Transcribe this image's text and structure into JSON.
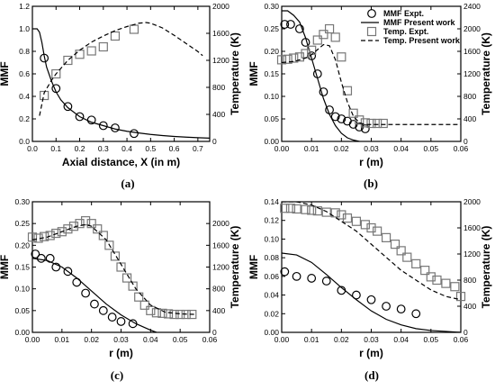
{
  "chart_data": [
    {
      "id": "a",
      "panel_label": "(a)",
      "type": "line",
      "xlabel": "Axial distance, X (in m)",
      "ylabel_left": "MMF",
      "ylabel_right": "Temperature (K)",
      "xlim": [
        0.0,
        0.75
      ],
      "ylim_left": [
        0.0,
        1.2
      ],
      "ylim_right": [
        0,
        2000
      ],
      "xticks": [
        "0.0",
        "0.1",
        "0.2",
        "0.3",
        "0.4",
        "0.5",
        "0.6",
        "0.7"
      ],
      "yticks_left": [
        "0.0",
        "0.2",
        "0.4",
        "0.6",
        "0.8",
        "1.0",
        "1.2"
      ],
      "yticks_right": [
        "0",
        "400",
        "800",
        "1200",
        "1600",
        "2000"
      ],
      "series": [
        {
          "role": "mmf-expt",
          "marker": "circle",
          "axis": "left",
          "x": [
            0.05,
            0.1,
            0.15,
            0.2,
            0.25,
            0.3,
            0.35,
            0.43
          ],
          "y": [
            0.74,
            0.47,
            0.31,
            0.22,
            0.19,
            0.14,
            0.12,
            0.07
          ]
        },
        {
          "role": "mmf-model",
          "style": "solid",
          "axis": "left",
          "x": [
            0.0,
            0.02,
            0.03,
            0.04,
            0.05,
            0.06,
            0.08,
            0.1,
            0.12,
            0.15,
            0.2,
            0.25,
            0.3,
            0.35,
            0.4,
            0.45,
            0.5,
            0.55,
            0.6,
            0.65,
            0.7,
            0.75
          ],
          "y": [
            1.0,
            1.0,
            0.97,
            0.88,
            0.76,
            0.66,
            0.54,
            0.44,
            0.37,
            0.3,
            0.22,
            0.17,
            0.14,
            0.11,
            0.09,
            0.075,
            0.062,
            0.052,
            0.044,
            0.038,
            0.033,
            0.029
          ]
        },
        {
          "role": "temp-expt",
          "marker": "square",
          "axis": "right",
          "x": [
            0.05,
            0.1,
            0.15,
            0.2,
            0.25,
            0.3,
            0.35,
            0.43
          ],
          "y": [
            680,
            1000,
            1200,
            1290,
            1340,
            1400,
            1560,
            1660
          ]
        },
        {
          "role": "temp-model",
          "style": "dashed",
          "axis": "right",
          "x": [
            0.03,
            0.05,
            0.08,
            0.1,
            0.15,
            0.2,
            0.25,
            0.3,
            0.35,
            0.4,
            0.45,
            0.48,
            0.5,
            0.55,
            0.6,
            0.65,
            0.7,
            0.72
          ],
          "y": [
            380,
            720,
            900,
            1000,
            1200,
            1350,
            1470,
            1560,
            1640,
            1700,
            1750,
            1760,
            1750,
            1680,
            1570,
            1450,
            1330,
            1270
          ]
        }
      ]
    },
    {
      "id": "b",
      "panel_label": "(b)",
      "type": "line",
      "xlabel": "r (m)",
      "ylabel_left": "MMF",
      "ylabel_right": "Temperature (K)",
      "xlim": [
        0.0,
        0.06
      ],
      "ylim_left": [
        0.0,
        0.3
      ],
      "ylim_right": [
        0,
        2400
      ],
      "xticks": [
        "0.00",
        "0.01",
        "0.02",
        "0.03",
        "0.04",
        "0.05",
        "0.06"
      ],
      "yticks_left": [
        "0.00",
        "0.05",
        "0.10",
        "0.15",
        "0.20",
        "0.25",
        "0.30"
      ],
      "yticks_right": [
        "0",
        "400",
        "800",
        "1200",
        "1600",
        "2000",
        "2400"
      ],
      "legend": {
        "placement": "top-right",
        "entries": [
          {
            "label": "MMF Expt.",
            "marker": "circle"
          },
          {
            "label": "MMF Present work",
            "style": "solid"
          },
          {
            "label": "Temp. Expt.",
            "marker": "square"
          },
          {
            "label": "Temp. Present work",
            "style": "dashed"
          }
        ]
      },
      "series": [
        {
          "role": "mmf-expt",
          "marker": "circle",
          "axis": "left",
          "x": [
            0.001,
            0.003,
            0.006,
            0.008,
            0.01,
            0.012,
            0.014,
            0.016,
            0.018,
            0.02,
            0.022,
            0.024,
            0.026,
            0.028
          ],
          "y": [
            0.26,
            0.26,
            0.25,
            0.22,
            0.19,
            0.15,
            0.11,
            0.07,
            0.055,
            0.05,
            0.045,
            0.038,
            0.032,
            0.028
          ]
        },
        {
          "role": "mmf-model",
          "style": "solid",
          "axis": "left",
          "x": [
            0.0,
            0.002,
            0.004,
            0.006,
            0.008,
            0.01,
            0.012,
            0.014,
            0.016,
            0.018,
            0.02,
            0.022,
            0.024,
            0.026
          ],
          "y": [
            0.29,
            0.29,
            0.28,
            0.265,
            0.23,
            0.185,
            0.14,
            0.095,
            0.06,
            0.035,
            0.018,
            0.008,
            0.003,
            0.0
          ]
        },
        {
          "role": "temp-expt",
          "marker": "square",
          "axis": "right",
          "x": [
            0.0,
            0.002,
            0.004,
            0.006,
            0.008,
            0.01,
            0.012,
            0.014,
            0.016,
            0.018,
            0.02,
            0.022,
            0.024,
            0.026,
            0.028,
            0.03,
            0.032,
            0.034
          ],
          "y": [
            1450,
            1460,
            1480,
            1500,
            1560,
            1620,
            1800,
            1900,
            2000,
            1850,
            1500,
            900,
            500,
            380,
            330,
            320,
            320,
            320
          ]
        },
        {
          "role": "temp-model",
          "style": "dashed",
          "axis": "right",
          "x": [
            0.0,
            0.004,
            0.008,
            0.01,
            0.012,
            0.014,
            0.016,
            0.018,
            0.02,
            0.022,
            0.024,
            0.026,
            0.028,
            0.03,
            0.035,
            0.04,
            0.06
          ],
          "y": [
            1400,
            1420,
            1480,
            1540,
            1630,
            1720,
            1700,
            1450,
            1050,
            700,
            450,
            330,
            300,
            300,
            300,
            300,
            300
          ]
        }
      ]
    },
    {
      "id": "c",
      "panel_label": "(c)",
      "type": "line",
      "xlabel": "r (m)",
      "ylabel_left": "MMF",
      "ylabel_right": "Temperature (K)",
      "xlim": [
        0.0,
        0.06
      ],
      "ylim_left": [
        0.0,
        0.3
      ],
      "ylim_right": [
        0,
        2400
      ],
      "xticks": [
        "0.00",
        "0.01",
        "0.02",
        "0.03",
        "0.04",
        "0.05",
        "0.06"
      ],
      "yticks_left": [
        "0.00",
        "0.05",
        "0.10",
        "0.15",
        "0.20",
        "0.25",
        "0.30"
      ],
      "yticks_right": [
        "0",
        "400",
        "800",
        "1200",
        "1600",
        "2000"
      ],
      "series": [
        {
          "role": "mmf-expt",
          "marker": "circle",
          "axis": "left",
          "x": [
            0.001,
            0.003,
            0.006,
            0.008,
            0.012,
            0.015,
            0.018,
            0.021,
            0.024,
            0.027,
            0.03,
            0.034
          ],
          "y": [
            0.18,
            0.17,
            0.17,
            0.15,
            0.14,
            0.115,
            0.09,
            0.065,
            0.05,
            0.035,
            0.025,
            0.02
          ]
        },
        {
          "role": "mmf-model",
          "style": "solid",
          "axis": "left",
          "x": [
            0.0,
            0.005,
            0.01,
            0.015,
            0.02,
            0.025,
            0.03,
            0.035,
            0.04,
            0.042
          ],
          "y": [
            0.17,
            0.165,
            0.15,
            0.125,
            0.095,
            0.065,
            0.04,
            0.02,
            0.005,
            0.0
          ]
        },
        {
          "role": "temp-expt",
          "marker": "square",
          "axis": "right",
          "x": [
            0.0,
            0.002,
            0.004,
            0.006,
            0.008,
            0.01,
            0.012,
            0.014,
            0.016,
            0.018,
            0.02,
            0.022,
            0.024,
            0.026,
            0.028,
            0.03,
            0.032,
            0.034,
            0.036,
            0.038,
            0.04,
            0.042,
            0.044,
            0.046,
            0.048,
            0.05,
            0.052,
            0.054
          ],
          "y": [
            1750,
            1730,
            1760,
            1780,
            1820,
            1850,
            1900,
            1950,
            2000,
            2050,
            2000,
            1900,
            1780,
            1600,
            1400,
            1200,
            1000,
            850,
            650,
            500,
            400,
            360,
            350,
            340,
            330,
            330,
            330,
            330
          ]
        },
        {
          "role": "temp-model",
          "style": "dashed",
          "axis": "right",
          "x": [
            0.0,
            0.005,
            0.01,
            0.015,
            0.018,
            0.02,
            0.025,
            0.03,
            0.035,
            0.04,
            0.045,
            0.05,
            0.055
          ],
          "y": [
            1700,
            1750,
            1850,
            1950,
            1980,
            1950,
            1700,
            1250,
            800,
            500,
            370,
            340,
            330
          ]
        }
      ]
    },
    {
      "id": "d",
      "panel_label": "(d)",
      "type": "line",
      "xlabel": "r (m)",
      "ylabel_left": "MMF",
      "ylabel_right": "Temperature (K)",
      "xlim": [
        0.0,
        0.06
      ],
      "ylim_left": [
        0.0,
        0.14
      ],
      "ylim_right": [
        0,
        2000
      ],
      "xticks": [
        "0.00",
        "0.01",
        "0.02",
        "0.03",
        "0.04",
        "0.05",
        "0.06"
      ],
      "yticks_left": [
        "0.00",
        "0.02",
        "0.04",
        "0.06",
        "0.08",
        "0.10",
        "0.12",
        "0.14"
      ],
      "yticks_right": [
        "0",
        "400",
        "800",
        "1200",
        "1600",
        "2000"
      ],
      "series": [
        {
          "role": "mmf-expt",
          "marker": "circle",
          "axis": "left",
          "x": [
            0.001,
            0.005,
            0.01,
            0.015,
            0.02,
            0.025,
            0.03,
            0.035,
            0.04,
            0.045
          ],
          "y": [
            0.065,
            0.06,
            0.058,
            0.055,
            0.045,
            0.04,
            0.035,
            0.028,
            0.025,
            0.02
          ]
        },
        {
          "role": "mmf-model",
          "style": "solid",
          "axis": "left",
          "x": [
            0.0,
            0.005,
            0.01,
            0.015,
            0.02,
            0.025,
            0.03,
            0.035,
            0.04,
            0.045,
            0.05,
            0.055,
            0.06
          ],
          "y": [
            0.085,
            0.083,
            0.075,
            0.062,
            0.048,
            0.035,
            0.023,
            0.014,
            0.008,
            0.004,
            0.002,
            0.001,
            0.0
          ]
        },
        {
          "role": "temp-expt",
          "marker": "square",
          "axis": "right",
          "x": [
            0.001,
            0.003,
            0.005,
            0.008,
            0.01,
            0.012,
            0.015,
            0.018,
            0.02,
            0.022,
            0.025,
            0.028,
            0.03,
            0.032,
            0.035,
            0.038,
            0.04,
            0.042,
            0.045,
            0.048,
            0.05,
            0.052,
            0.055,
            0.058,
            0.06
          ],
          "y": [
            1900,
            1900,
            1890,
            1880,
            1870,
            1860,
            1840,
            1830,
            1800,
            1750,
            1700,
            1650,
            1600,
            1550,
            1450,
            1350,
            1250,
            1150,
            1050,
            950,
            850,
            800,
            750,
            700,
            550
          ]
        },
        {
          "role": "temp-model",
          "style": "dashed",
          "axis": "right",
          "x": [
            0.0,
            0.005,
            0.01,
            0.015,
            0.02,
            0.025,
            0.03,
            0.035,
            0.04,
            0.045,
            0.05,
            0.055,
            0.06
          ],
          "y": [
            2000,
            2000,
            1950,
            1850,
            1700,
            1550,
            1350,
            1150,
            950,
            800,
            650,
            550,
            500
          ]
        }
      ]
    }
  ]
}
